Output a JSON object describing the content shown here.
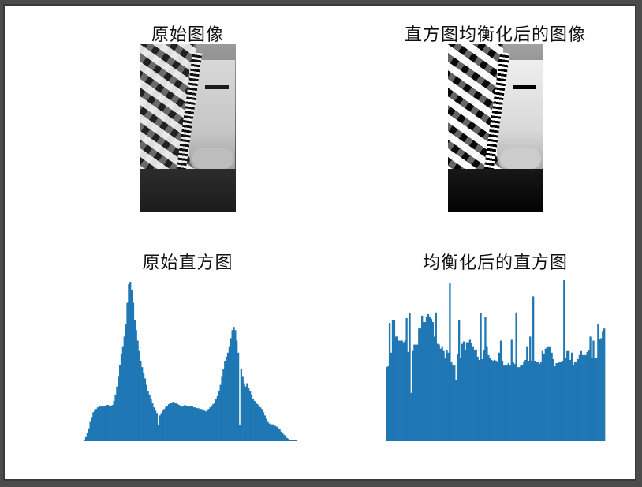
{
  "titles": {
    "original_image": "原始图像",
    "equalized_image": "直方图均衡化后的图像",
    "original_hist": "原始直方图",
    "equalized_hist": "均衡化后的直方图"
  },
  "colors": {
    "bar": "#1f77b4",
    "background": "#ffffff",
    "window_border": "#3a3a3a"
  },
  "chart_data": [
    {
      "type": "bar",
      "title": "原始直方图",
      "xlabel": "",
      "ylabel": "",
      "grid": false,
      "axes_visible": false,
      "values": [
        2,
        5,
        10,
        16,
        24,
        30,
        36,
        38,
        40,
        42,
        43,
        43,
        44,
        43,
        44,
        45,
        45,
        44,
        44,
        45,
        50,
        58,
        68,
        80,
        95,
        108,
        118,
        130,
        145,
        172,
        195,
        198,
        188,
        172,
        150,
        138,
        125,
        112,
        100,
        92,
        85,
        78,
        70,
        62,
        58,
        52,
        47,
        42,
        38,
        35,
        20,
        32,
        35,
        38,
        40,
        42,
        44,
        46,
        47,
        48,
        49,
        48,
        47,
        46,
        45,
        44,
        43,
        44,
        45,
        44,
        44,
        43,
        44,
        43,
        42,
        42,
        41,
        41,
        40,
        40,
        39,
        38,
        37,
        38,
        40,
        42,
        44,
        46,
        48,
        52,
        56,
        62,
        70,
        80,
        90,
        100,
        105,
        110,
        118,
        128,
        138,
        142,
        138,
        125,
        110,
        20,
        90,
        80,
        72,
        68,
        72,
        66,
        62,
        58,
        52,
        50,
        48,
        46,
        44,
        42,
        40,
        36,
        32,
        28,
        24,
        22,
        20,
        21,
        20,
        19,
        18,
        16,
        15,
        12,
        10,
        8,
        6,
        4,
        3,
        2,
        1,
        1,
        1,
        1
      ],
      "ylim": [
        0,
        200
      ]
    },
    {
      "type": "bar",
      "title": "均衡化后的直方图",
      "xlabel": "",
      "ylabel": "",
      "grid": false,
      "axes_visible": false,
      "values": [
        92,
        93,
        147,
        110,
        150,
        150,
        130,
        130,
        125,
        125,
        125,
        123,
        125,
        153,
        111,
        159,
        60,
        112,
        120,
        120,
        120,
        140,
        141,
        156,
        148,
        148,
        155,
        158,
        155,
        152,
        148,
        130,
        160,
        121,
        120,
        115,
        118,
        112,
        103,
        113,
        110,
        196,
        98,
        94,
        94,
        76,
        108,
        151,
        104,
        121,
        124,
        113,
        123,
        123,
        126,
        122,
        118,
        113,
        114,
        105,
        101,
        159,
        102,
        113,
        154,
        118,
        107,
        104,
        101,
        100,
        101,
        100,
        99,
        110,
        125,
        100,
        94,
        94,
        95,
        97,
        94,
        126,
        99,
        96,
        160,
        92,
        92,
        94,
        95,
        99,
        101,
        118,
        100,
        130,
        100,
        180,
        100,
        98,
        98,
        96,
        98,
        112,
        108,
        115,
        117,
        118,
        117,
        110,
        102,
        93,
        97,
        97,
        98,
        99,
        100,
        200,
        104,
        112,
        112,
        101,
        110,
        95,
        99,
        98,
        102,
        107,
        112,
        107,
        107,
        107,
        111,
        113,
        130,
        104,
        125,
        103,
        103,
        145,
        127,
        128,
        137,
        140
      ],
      "ylim": [
        0,
        200
      ]
    }
  ]
}
